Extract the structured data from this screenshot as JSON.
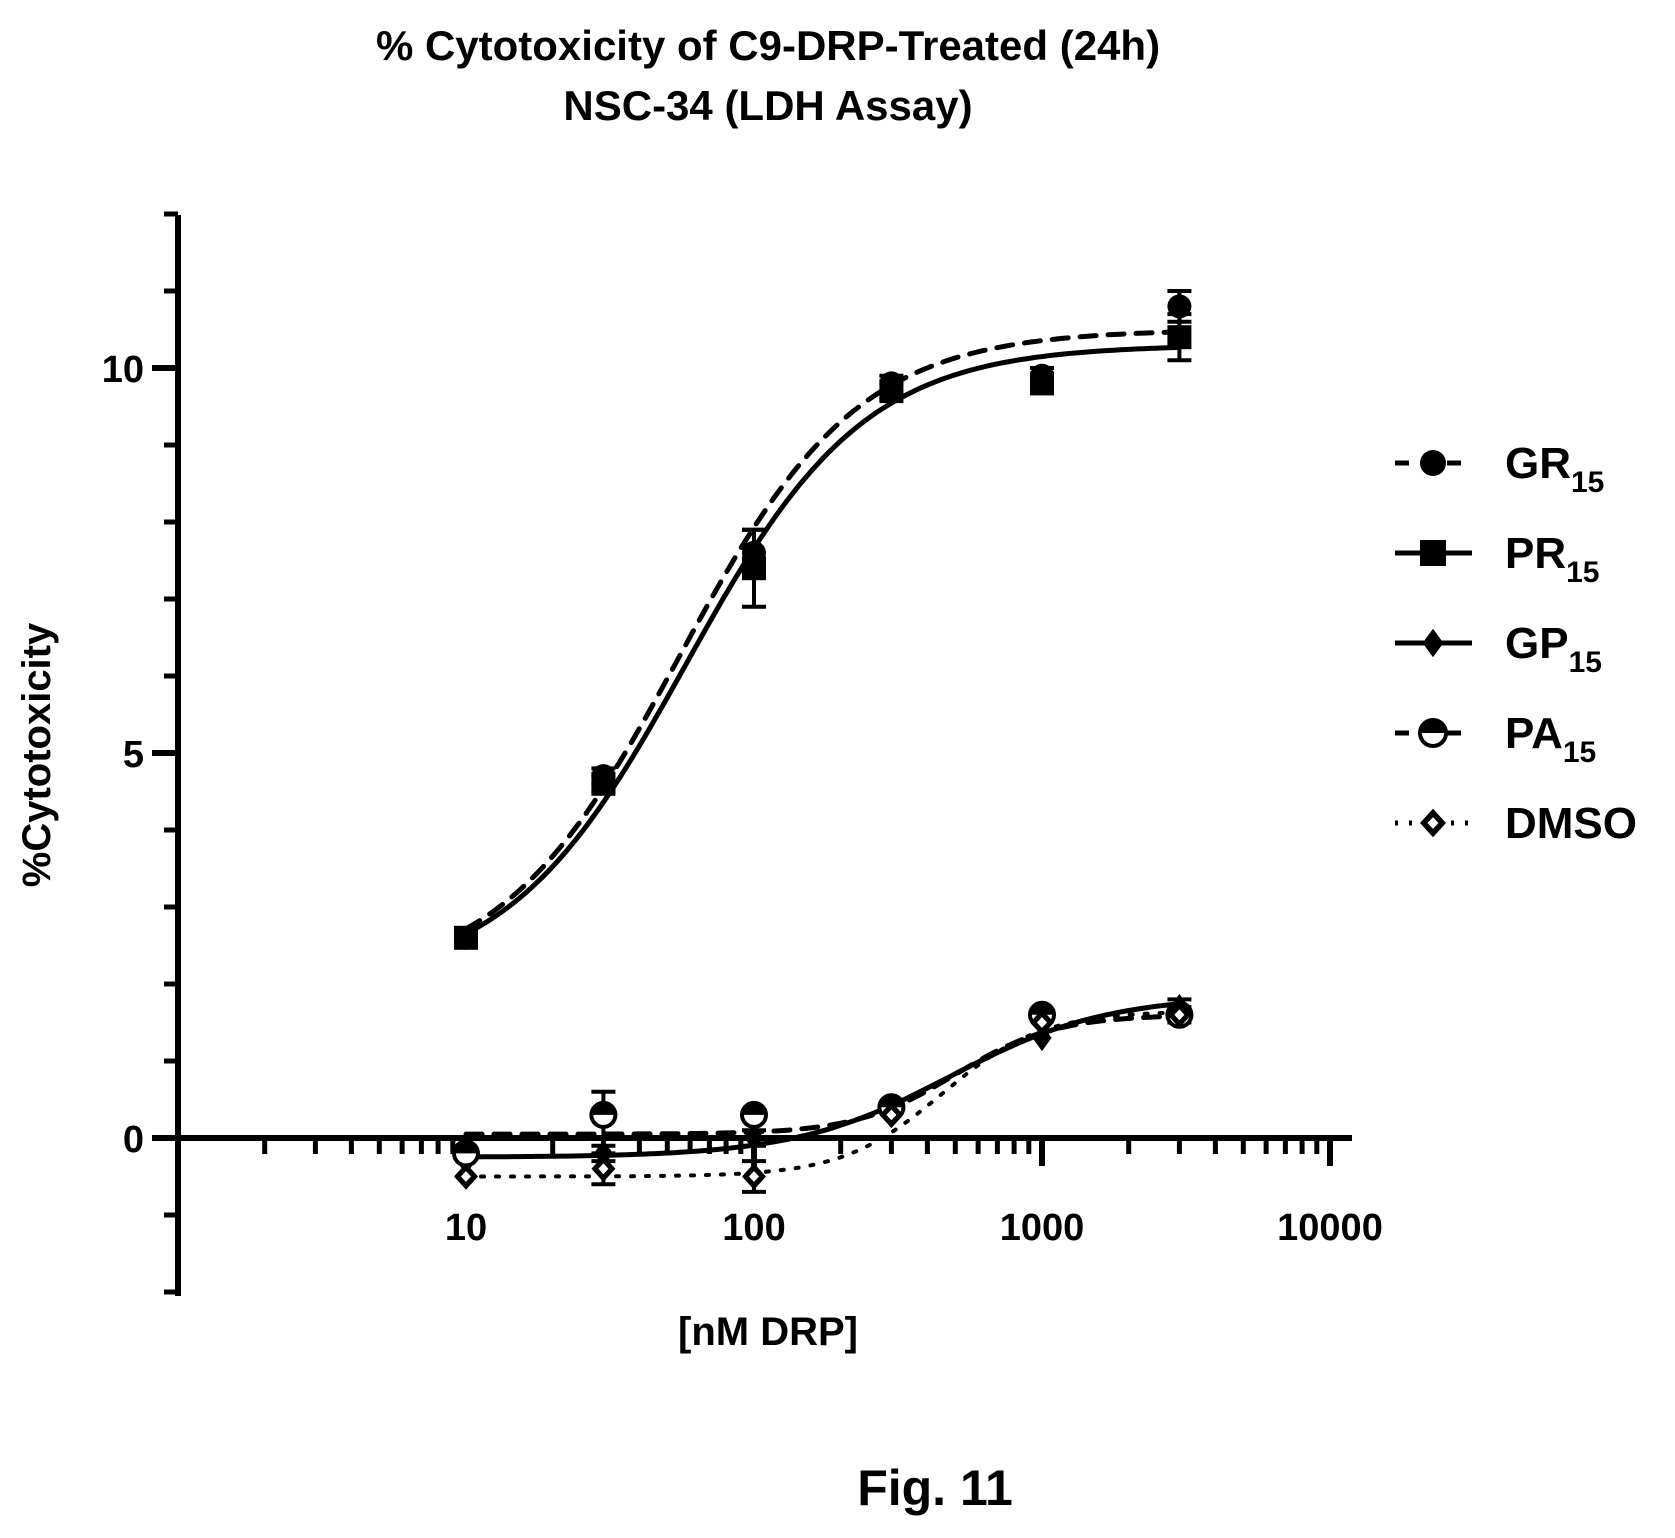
{
  "chart_data": {
    "type": "line",
    "title_line1": "% Cytotoxicity of C9-DRP-Treated (24h)",
    "title_line2": "NSC-34 (LDH Assay)",
    "xlabel": "[nM DRP]",
    "ylabel": "%Cytotoxicity",
    "x_scale": "log",
    "xlim": [
      1,
      10000
    ],
    "ylim": [
      -2,
      12
    ],
    "x_ticks": [
      10,
      100,
      1000,
      10000
    ],
    "x_tick_labels": [
      "10",
      "100",
      "1000",
      "10000"
    ],
    "y_ticks": [
      0,
      5,
      10
    ],
    "y_tick_labels": [
      "0",
      "5",
      "10"
    ],
    "x": [
      10,
      30,
      100,
      300,
      1000,
      3000
    ],
    "series": [
      {
        "name": "GR",
        "subscript": "15",
        "marker": "circle",
        "line": "dashed",
        "values": [
          2.6,
          4.7,
          7.6,
          9.8,
          9.9,
          10.8
        ],
        "errors": [
          0.1,
          0.1,
          0.3,
          0.1,
          0.1,
          0.2
        ],
        "fit": {
          "bottom": 2.0,
          "top": 10.5,
          "ec50": 55,
          "hill": 1.4
        }
      },
      {
        "name": "PR",
        "subscript": "15",
        "marker": "square",
        "line": "solid",
        "values": [
          2.6,
          4.6,
          7.4,
          9.7,
          9.8,
          10.4
        ],
        "errors": [
          0.1,
          0.1,
          0.5,
          0.1,
          0.1,
          0.3
        ],
        "fit": {
          "bottom": 2.0,
          "top": 10.3,
          "ec50": 58,
          "hill": 1.4
        }
      },
      {
        "name": "GP",
        "subscript": "15",
        "marker": "diamond",
        "line": "solid",
        "values": [
          -0.3,
          -0.2,
          0.0,
          0.4,
          1.3,
          1.7
        ],
        "errors": [
          0.05,
          0.1,
          0.1,
          0.05,
          0.05,
          0.1
        ],
        "fit": {
          "bottom": -0.25,
          "top": 1.85,
          "ec50": 480,
          "hill": 1.6
        }
      },
      {
        "name": "PA",
        "subscript": "15",
        "marker": "half-circle",
        "line": "dashed",
        "values": [
          -0.2,
          0.3,
          0.3,
          0.4,
          1.6,
          1.6
        ],
        "errors": [
          0.05,
          0.3,
          0.05,
          0.05,
          0.05,
          0.1
        ],
        "fit": {
          "bottom": 0.05,
          "top": 1.6,
          "ec50": 500,
          "hill": 2.5
        }
      },
      {
        "name": "DMSO",
        "subscript": "",
        "marker": "open-diamond",
        "line": "dotted",
        "values": [
          -0.5,
          -0.4,
          -0.5,
          0.3,
          1.5,
          1.6
        ],
        "errors": [
          0.05,
          0.2,
          0.2,
          0.05,
          0.05,
          0.05
        ],
        "fit": {
          "bottom": -0.5,
          "top": 1.65,
          "ec50": 450,
          "hill": 2.5
        }
      }
    ],
    "legend_position": "right"
  },
  "figure_label": "Fig. 11"
}
